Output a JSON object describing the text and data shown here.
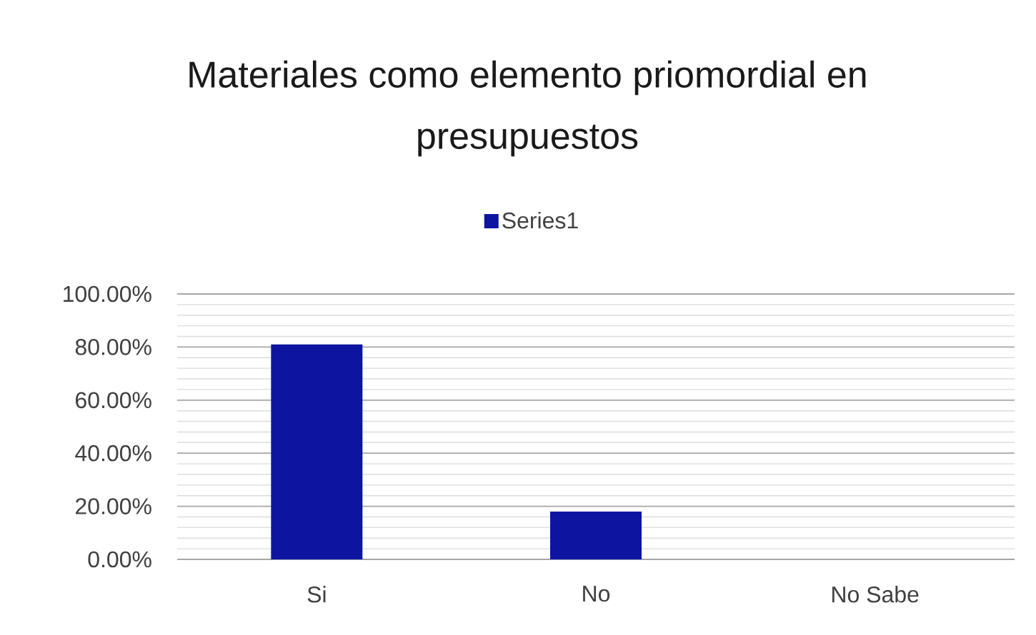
{
  "chart_data": {
    "type": "bar",
    "title": "Materiales como elemento priomordial en presupuestos",
    "categories": [
      "Si",
      "No",
      "No Sabe"
    ],
    "series": [
      {
        "name": "Series1",
        "color": "#0d15a0",
        "values": [
          81,
          18,
          0
        ]
      }
    ],
    "ylim": [
      0,
      100
    ],
    "yticks": [
      {
        "value": 0,
        "label": "0.00%"
      },
      {
        "value": 4,
        "label": null
      },
      {
        "value": 8,
        "label": null
      },
      {
        "value": 12,
        "label": null
      },
      {
        "value": 16,
        "label": null
      },
      {
        "value": 20,
        "label": "20.00%"
      },
      {
        "value": 24,
        "label": null
      },
      {
        "value": 28,
        "label": null
      },
      {
        "value": 32,
        "label": null
      },
      {
        "value": 36,
        "label": null
      },
      {
        "value": 40,
        "label": "40.00%"
      },
      {
        "value": 44,
        "label": null
      },
      {
        "value": 48,
        "label": null
      },
      {
        "value": 52,
        "label": null
      },
      {
        "value": 56,
        "label": null
      },
      {
        "value": 60,
        "label": "60.00%"
      },
      {
        "value": 64,
        "label": null
      },
      {
        "value": 68,
        "label": null
      },
      {
        "value": 72,
        "label": null
      },
      {
        "value": 76,
        "label": null
      },
      {
        "value": 80,
        "label": "80.00%"
      },
      {
        "value": 84,
        "label": null
      },
      {
        "value": 88,
        "label": null
      },
      {
        "value": 92,
        "label": null
      },
      {
        "value": 96,
        "label": null
      },
      {
        "value": 100,
        "label": "100.00%"
      }
    ],
    "grid": "y",
    "legend": "top"
  }
}
